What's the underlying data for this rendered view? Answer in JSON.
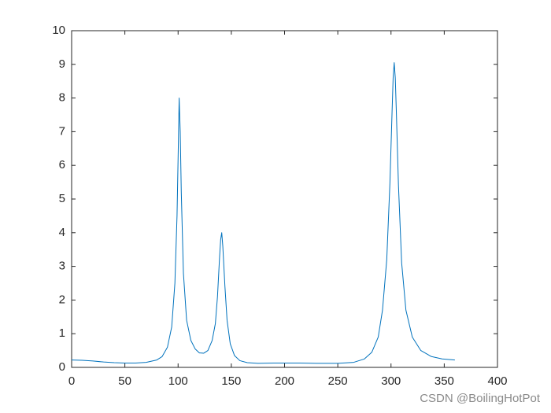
{
  "chart_data": {
    "type": "line",
    "x": [
      0,
      10,
      20,
      30,
      40,
      50,
      60,
      70,
      80,
      85,
      90,
      94,
      97,
      99,
      100,
      101,
      102,
      103,
      105,
      108,
      112,
      116,
      120,
      124,
      128,
      132,
      135,
      137,
      139,
      140,
      141,
      142,
      144,
      146,
      149,
      153,
      158,
      165,
      175,
      190,
      210,
      230,
      250,
      265,
      275,
      282,
      288,
      292,
      296,
      299,
      301,
      302,
      303,
      304,
      305,
      307,
      310,
      314,
      320,
      328,
      338,
      348,
      360
    ],
    "values": [
      0.22,
      0.21,
      0.19,
      0.16,
      0.14,
      0.13,
      0.13,
      0.15,
      0.22,
      0.32,
      0.6,
      1.2,
      2.5,
      4.5,
      6.2,
      8.0,
      7.0,
      5.2,
      2.8,
      1.4,
      0.8,
      0.55,
      0.43,
      0.42,
      0.5,
      0.8,
      1.3,
      2.1,
      3.3,
      3.8,
      4.0,
      3.6,
      2.4,
      1.4,
      0.7,
      0.35,
      0.2,
      0.14,
      0.12,
      0.13,
      0.13,
      0.12,
      0.12,
      0.15,
      0.25,
      0.45,
      0.9,
      1.7,
      3.2,
      5.5,
      7.6,
      8.6,
      9.05,
      8.6,
      7.6,
      5.4,
      3.1,
      1.7,
      0.9,
      0.5,
      0.32,
      0.25,
      0.22
    ],
    "color": "#0072bd",
    "xlim": [
      0,
      400
    ],
    "xticks": [
      0,
      50,
      100,
      150,
      200,
      250,
      300,
      350,
      400
    ],
    "ylim": [
      0,
      10
    ],
    "yticks": [
      0,
      1,
      2,
      3,
      4,
      5,
      6,
      7,
      8,
      9,
      10
    ],
    "watermark": "CSDN @BoilingHotPot"
  }
}
